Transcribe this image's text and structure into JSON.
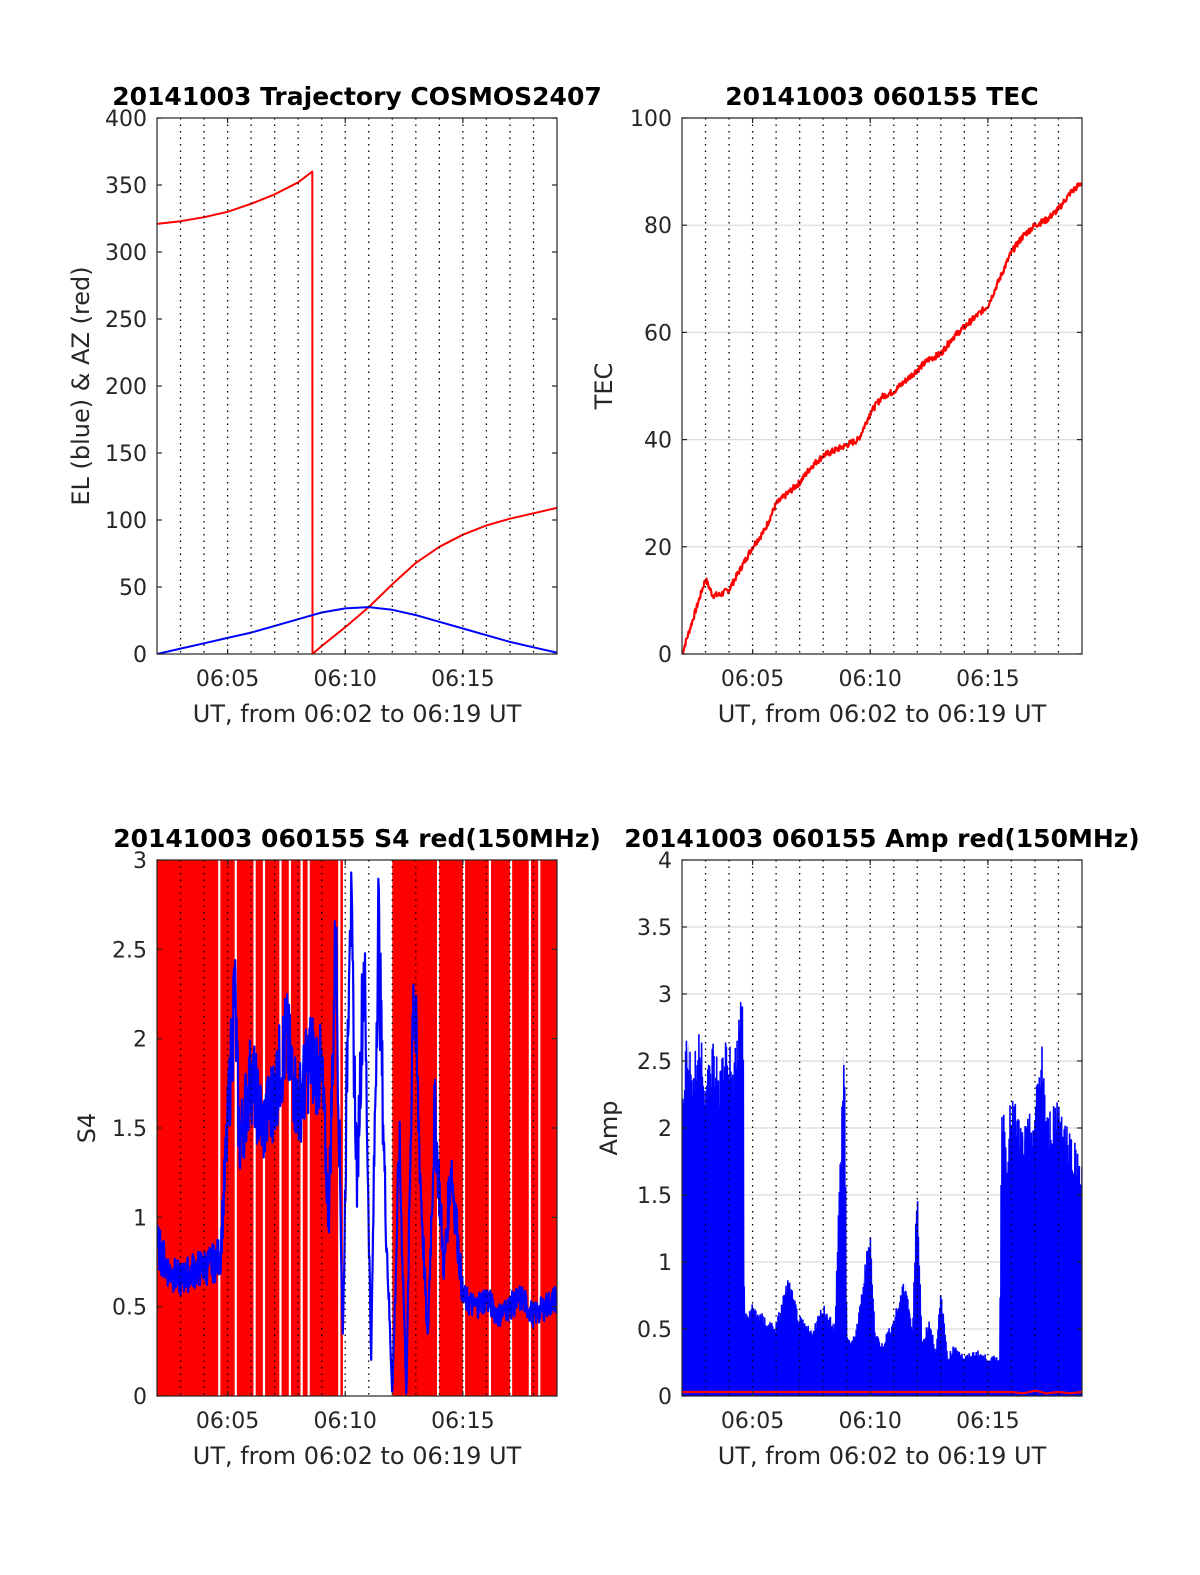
{
  "chart_data": [
    {
      "id": "trajectory",
      "type": "line",
      "title": "20141003 Trajectory COSMOS2407",
      "xlabel": "UT, from 06:02 to 06:19 UT",
      "ylabel": "EL (blue) & AZ (red)",
      "xlim": [
        2,
        19
      ],
      "ylim": [
        0,
        400
      ],
      "yticks": [
        0,
        50,
        100,
        150,
        200,
        250,
        300,
        350,
        400
      ],
      "ytick_labels": [
        "0",
        "50",
        "100",
        "150",
        "200",
        "250",
        "300",
        "350",
        "400"
      ],
      "xticks": [
        5,
        10,
        15
      ],
      "xtick_labels": [
        "06:05",
        "06:10",
        "06:15"
      ],
      "minor_grid_step": 1,
      "horizontal_grid": false,
      "series": [
        {
          "color": "#ff0000",
          "x": [
            2,
            3,
            4,
            5,
            6,
            7,
            8,
            8.6,
            8.61,
            9,
            10,
            11,
            12,
            13,
            14,
            15,
            16,
            17,
            18,
            19
          ],
          "y": [
            321,
            323,
            326,
            330,
            336,
            343,
            352,
            360,
            0,
            6,
            20,
            35,
            52,
            68,
            80,
            89,
            96,
            101,
            105,
            109
          ]
        },
        {
          "color": "#0000ff",
          "x": [
            2,
            3,
            4,
            5,
            6,
            7,
            8,
            9,
            10,
            11,
            12,
            13,
            14,
            15,
            16,
            17,
            18,
            19
          ],
          "y": [
            0,
            4,
            8,
            12,
            16,
            21,
            26,
            31,
            34,
            35,
            33,
            29,
            24,
            19,
            14,
            9,
            5,
            1
          ]
        }
      ]
    },
    {
      "id": "tec",
      "type": "line",
      "title": "20141003 060155 TEC",
      "xlabel": "UT, from 06:02 to 06:19 UT",
      "ylabel": "TEC",
      "xlim": [
        2,
        19
      ],
      "ylim": [
        0,
        100
      ],
      "yticks": [
        0,
        20,
        40,
        60,
        80,
        100
      ],
      "ytick_labels": [
        "0",
        "20",
        "40",
        "60",
        "80",
        "100"
      ],
      "xticks": [
        5,
        10,
        15
      ],
      "xtick_labels": [
        "06:05",
        "06:10",
        "06:15"
      ],
      "minor_grid_step": 1,
      "horizontal_grid": true,
      "series": [
        {
          "color": "#ff0000",
          "x": [
            2,
            2.5,
            3,
            3.3,
            3.6,
            4,
            4.5,
            5,
            5.5,
            6,
            6.5,
            7,
            7.5,
            8,
            8.5,
            9,
            9.5,
            10,
            10.5,
            11,
            11.5,
            12,
            12.5,
            13,
            13.5,
            14,
            14.5,
            15,
            15.5,
            16,
            16.5,
            17,
            17.5,
            18,
            18.5,
            19
          ],
          "y": [
            0,
            7,
            14,
            11,
            11,
            12,
            16,
            20,
            23,
            28,
            30,
            32,
            35,
            37,
            38,
            39,
            40,
            45,
            48,
            49,
            51,
            53,
            55,
            56,
            59,
            61,
            63,
            65,
            70,
            75,
            78,
            80,
            81,
            83,
            86,
            88
          ]
        }
      ]
    },
    {
      "id": "s4",
      "type": "line",
      "title": "20141003 060155 S4 red(150MHz)",
      "xlabel": "UT, from 06:02 to 06:19 UT",
      "ylabel": "S4",
      "xlim": [
        2,
        19
      ],
      "ylim": [
        0,
        3
      ],
      "yticks": [
        0,
        0.5,
        1,
        1.5,
        2,
        2.5,
        3
      ],
      "ytick_labels": [
        "0",
        "0.5",
        "1",
        "1.5",
        "2",
        "2.5",
        "3"
      ],
      "xticks": [
        5,
        10,
        15
      ],
      "xtick_labels": [
        "06:05",
        "06:10",
        "06:15"
      ],
      "minor_grid_step": 1,
      "horizontal_grid": true,
      "red_fill": {
        "color": "#ff0000",
        "top": 3,
        "gaps_x": [
          4.6,
          5.3,
          6.1,
          6.5,
          7.2,
          7.6,
          8.1,
          8.4,
          9.7,
          10.0,
          10.3,
          11.3,
          11.5,
          13.9,
          15.0,
          16.1,
          17.0,
          17.8,
          18.2
        ],
        "white_bands": [
          [
            9.9,
            12.0
          ]
        ]
      },
      "series": [
        {
          "color": "#0000ff",
          "x": [
            2,
            2.5,
            3,
            3.5,
            4,
            4.5,
            4.7,
            5,
            5.3,
            5.5,
            6,
            6.5,
            7,
            7.5,
            8,
            8.5,
            9,
            9.3,
            9.6,
            9.9,
            10.2,
            10.5,
            10.8,
            11.1,
            11.4,
            11.7,
            12,
            12.3,
            12.6,
            12.9,
            13.2,
            13.5,
            13.8,
            14.2,
            14.5,
            15,
            15.5,
            16,
            16.5,
            17,
            17.5,
            18,
            18.5,
            19
          ],
          "y": [
            0.85,
            0.7,
            0.65,
            0.7,
            0.72,
            0.75,
            0.8,
            1.5,
            2.3,
            1.4,
            1.8,
            1.5,
            1.7,
            2.0,
            1.6,
            1.9,
            1.8,
            1.0,
            2.6,
            0.3,
            2.9,
            1.2,
            2.5,
            0.2,
            2.7,
            1.1,
            0.0,
            1.4,
            0.0,
            2.4,
            1.2,
            0.3,
            1.6,
            0.7,
            1.3,
            0.55,
            0.5,
            0.55,
            0.45,
            0.5,
            0.55,
            0.45,
            0.5,
            0.55
          ]
        }
      ]
    },
    {
      "id": "amp",
      "type": "line",
      "title": "20141003 060155 Amp red(150MHz)",
      "xlabel": "UT, from 06:02 to 06:19 UT",
      "ylabel": "Amp",
      "xlim": [
        2,
        19
      ],
      "ylim": [
        0,
        4
      ],
      "yticks": [
        0,
        0.5,
        1,
        1.5,
        2,
        2.5,
        3,
        3.5,
        4
      ],
      "ytick_labels": [
        "0",
        "0.5",
        "1",
        "1.5",
        "2",
        "2.5",
        "3",
        "3.5",
        "4"
      ],
      "xticks": [
        5,
        10,
        15
      ],
      "xtick_labels": [
        "06:05",
        "06:10",
        "06:15"
      ],
      "minor_grid_step": 1,
      "horizontal_grid": true,
      "series": [
        {
          "color": "#0000ff",
          "fill_to_zero": true,
          "x": [
            2,
            2.2,
            2.5,
            2.8,
            3.0,
            3.3,
            3.6,
            3.9,
            4.2,
            4.4,
            4.6,
            4.65,
            5.0,
            5.5,
            6.0,
            6.5,
            7.0,
            7.5,
            8.0,
            8.5,
            8.9,
            9.0,
            9.2,
            9.5,
            10.0,
            10.2,
            10.5,
            11.0,
            11.5,
            11.8,
            12.0,
            12.2,
            12.5,
            12.8,
            13.0,
            13.3,
            13.6,
            14.0,
            14.5,
            15.0,
            15.5,
            15.6,
            15.8,
            16.0,
            16.5,
            17.0,
            17.3,
            17.5,
            18.0,
            18.5,
            19.0
          ],
          "y": [
            2.4,
            2.8,
            2.5,
            2.9,
            2.4,
            2.7,
            2.5,
            2.8,
            2.5,
            2.9,
            3.15,
            0.6,
            0.7,
            0.6,
            0.55,
            0.9,
            0.6,
            0.5,
            0.7,
            0.55,
            2.8,
            0.5,
            0.4,
            0.6,
            1.3,
            0.5,
            0.4,
            0.6,
            0.9,
            0.5,
            1.7,
            0.4,
            0.6,
            0.35,
            0.8,
            0.3,
            0.4,
            0.3,
            0.35,
            0.3,
            0.3,
            2.4,
            1.9,
            2.3,
            2.0,
            2.2,
            2.75,
            2.1,
            2.3,
            2.0,
            1.8
          ]
        },
        {
          "color": "#ff0000",
          "x": [
            16.0,
            16.5,
            17.0,
            17.5,
            18.0,
            18.5,
            19.0
          ],
          "y": [
            0.03,
            0.02,
            0.04,
            0.02,
            0.03,
            0.02,
            0.03
          ]
        }
      ]
    }
  ]
}
